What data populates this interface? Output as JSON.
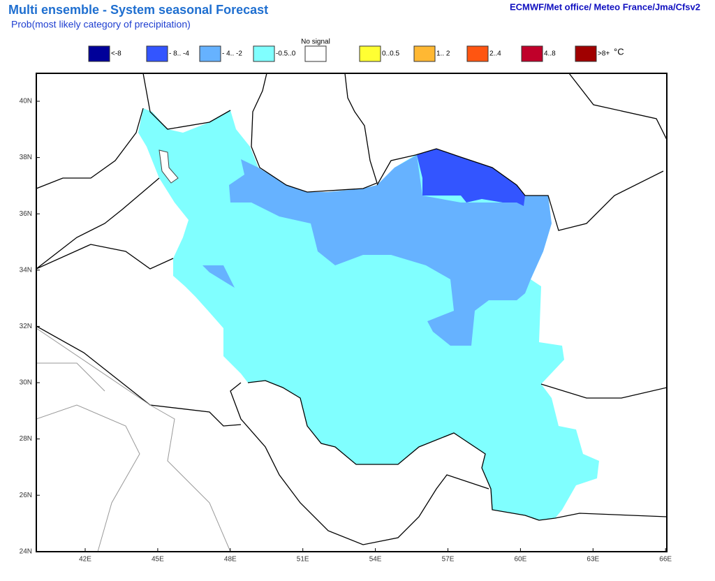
{
  "title": "Multi ensemble - System seasonal Forecast",
  "subtitle": "Prob(most likely category of precipitation)",
  "source": "ECMWF/Met office/ Meteo France/Jma/Cfsv2",
  "legend": {
    "items": [
      {
        "label": "<-8",
        "color": "#000099"
      },
      {
        "label": "- 8.. -4",
        "color": "#3355ff"
      },
      {
        "label": "- 4.. -2",
        "color": "#66b2ff"
      },
      {
        "label": "-0.5..0",
        "color": "#80ffff"
      },
      {
        "label": "No signal",
        "color": "#ffffff"
      },
      {
        "label": "0..0.5",
        "color": "#ffff33"
      },
      {
        "label": "1.. 2",
        "color": "#ffb833"
      },
      {
        "label": "2..4",
        "color": "#ff5511"
      },
      {
        "label": "4..8",
        "color": "#c0002a"
      },
      {
        "label": ">8+",
        "color": "#a00000"
      }
    ],
    "unit": "°C"
  },
  "lon_ticks": [
    "42E",
    "45E",
    "48E",
    "51E",
    "54E",
    "57E",
    "60E",
    "63E",
    "66E"
  ],
  "lat_ticks": [
    "40N",
    "38N",
    "36N",
    "34N",
    "32N",
    "30N",
    "28N",
    "26N",
    "24N"
  ]
}
